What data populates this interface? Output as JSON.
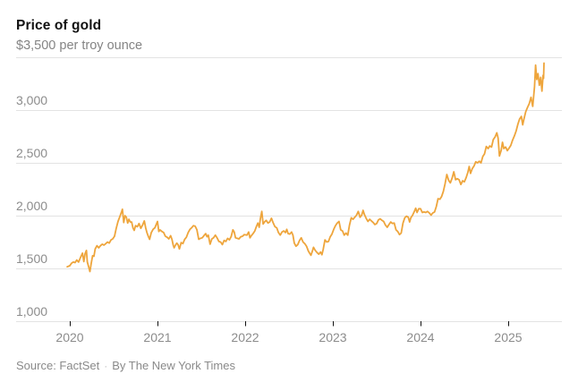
{
  "header": {
    "title": "Price of gold",
    "subtitle": "$3,500 per troy ounce"
  },
  "footer": {
    "source": "Source: FactSet",
    "separator": "·",
    "byline": "By The New York Times"
  },
  "colors": {
    "line": "#eea53c",
    "grid": "#e3e3e3",
    "axis_text": "#8c8c8c",
    "tick": "#121212",
    "title_text": "#121212"
  },
  "chart_data": {
    "type": "line",
    "title": "Price of gold",
    "subtitle_unit_label": "$3,500 per troy ounce",
    "unit": "USD per troy ounce",
    "x_range_years": [
      2019.97,
      2025.41
    ],
    "ylim": [
      1000,
      3500
    ],
    "grid": "horizontal",
    "y_gridline_values": [
      3500,
      3000,
      2500,
      2000,
      1500,
      1000
    ],
    "y_axis_labels": [
      {
        "value": 3000,
        "label": "3,000"
      },
      {
        "value": 2500,
        "label": "2,500"
      },
      {
        "value": 2000,
        "label": "2,000"
      },
      {
        "value": 1500,
        "label": "1,500"
      },
      {
        "value": 1000,
        "label": "1,000"
      }
    ],
    "x_ticks": [
      {
        "year": 2020,
        "label": "2020"
      },
      {
        "year": 2021,
        "label": "2021"
      },
      {
        "year": 2022,
        "label": "2022"
      },
      {
        "year": 2023,
        "label": "2023"
      },
      {
        "year": 2024,
        "label": "2024"
      },
      {
        "year": 2025,
        "label": "2025"
      }
    ],
    "series": [
      {
        "name": "Gold price, dollars per troy ounce",
        "points_format": "[years_since_2020, price_usd]",
        "points": [
          [
            -0.03,
            1515
          ],
          [
            0.0,
            1525
          ],
          [
            0.02,
            1550
          ],
          [
            0.04,
            1560
          ],
          [
            0.06,
            1555
          ],
          [
            0.08,
            1580
          ],
          [
            0.1,
            1560
          ],
          [
            0.12,
            1600
          ],
          [
            0.145,
            1645
          ],
          [
            0.16,
            1565
          ],
          [
            0.175,
            1640
          ],
          [
            0.19,
            1670
          ],
          [
            0.2,
            1560
          ],
          [
            0.215,
            1515
          ],
          [
            0.23,
            1470
          ],
          [
            0.245,
            1550
          ],
          [
            0.26,
            1620
          ],
          [
            0.275,
            1615
          ],
          [
            0.29,
            1685
          ],
          [
            0.31,
            1715
          ],
          [
            0.33,
            1695
          ],
          [
            0.35,
            1715
          ],
          [
            0.37,
            1730
          ],
          [
            0.39,
            1720
          ],
          [
            0.41,
            1735
          ],
          [
            0.43,
            1750
          ],
          [
            0.45,
            1740
          ],
          [
            0.47,
            1770
          ],
          [
            0.49,
            1780
          ],
          [
            0.51,
            1805
          ],
          [
            0.53,
            1880
          ],
          [
            0.55,
            1945
          ],
          [
            0.57,
            1990
          ],
          [
            0.59,
            2035
          ],
          [
            0.6,
            2060
          ],
          [
            0.615,
            1935
          ],
          [
            0.63,
            2000
          ],
          [
            0.645,
            1985
          ],
          [
            0.66,
            1930
          ],
          [
            0.675,
            1965
          ],
          [
            0.69,
            1940
          ],
          [
            0.705,
            1940
          ],
          [
            0.72,
            1885
          ],
          [
            0.735,
            1860
          ],
          [
            0.75,
            1905
          ],
          [
            0.77,
            1895
          ],
          [
            0.79,
            1925
          ],
          [
            0.81,
            1880
          ],
          [
            0.83,
            1910
          ],
          [
            0.85,
            1950
          ],
          [
            0.865,
            1885
          ],
          [
            0.88,
            1840
          ],
          [
            0.895,
            1805
          ],
          [
            0.91,
            1775
          ],
          [
            0.93,
            1840
          ],
          [
            0.95,
            1870
          ],
          [
            0.97,
            1885
          ],
          [
            1.0,
            1945
          ],
          [
            1.015,
            1850
          ],
          [
            1.03,
            1865
          ],
          [
            1.05,
            1850
          ],
          [
            1.07,
            1840
          ],
          [
            1.09,
            1805
          ],
          [
            1.11,
            1795
          ],
          [
            1.13,
            1780
          ],
          [
            1.15,
            1810
          ],
          [
            1.165,
            1775
          ],
          [
            1.18,
            1720
          ],
          [
            1.19,
            1695
          ],
          [
            1.205,
            1720
          ],
          [
            1.22,
            1740
          ],
          [
            1.235,
            1725
          ],
          [
            1.25,
            1685
          ],
          [
            1.27,
            1745
          ],
          [
            1.29,
            1735
          ],
          [
            1.31,
            1775
          ],
          [
            1.33,
            1795
          ],
          [
            1.35,
            1840
          ],
          [
            1.37,
            1870
          ],
          [
            1.39,
            1885
          ],
          [
            1.41,
            1905
          ],
          [
            1.43,
            1900
          ],
          [
            1.45,
            1865
          ],
          [
            1.47,
            1775
          ],
          [
            1.49,
            1785
          ],
          [
            1.51,
            1790
          ],
          [
            1.53,
            1810
          ],
          [
            1.55,
            1830
          ],
          [
            1.565,
            1800
          ],
          [
            1.58,
            1815
          ],
          [
            1.6,
            1730
          ],
          [
            1.62,
            1780
          ],
          [
            1.64,
            1790
          ],
          [
            1.66,
            1815
          ],
          [
            1.68,
            1790
          ],
          [
            1.7,
            1755
          ],
          [
            1.72,
            1750
          ],
          [
            1.74,
            1725
          ],
          [
            1.76,
            1765
          ],
          [
            1.78,
            1755
          ],
          [
            1.8,
            1785
          ],
          [
            1.82,
            1770
          ],
          [
            1.84,
            1800
          ],
          [
            1.86,
            1865
          ],
          [
            1.875,
            1845
          ],
          [
            1.89,
            1790
          ],
          [
            1.91,
            1785
          ],
          [
            1.93,
            1780
          ],
          [
            1.95,
            1800
          ],
          [
            1.97,
            1805
          ],
          [
            1.99,
            1820
          ],
          [
            2.02,
            1815
          ],
          [
            2.04,
            1845
          ],
          [
            2.055,
            1790
          ],
          [
            2.07,
            1810
          ],
          [
            2.09,
            1830
          ],
          [
            2.11,
            1855
          ],
          [
            2.13,
            1900
          ],
          [
            2.145,
            1930
          ],
          [
            2.16,
            1890
          ],
          [
            2.175,
            1975
          ],
          [
            2.19,
            2040
          ],
          [
            2.205,
            1920
          ],
          [
            2.22,
            1940
          ],
          [
            2.24,
            1955
          ],
          [
            2.26,
            1930
          ],
          [
            2.28,
            1940
          ],
          [
            2.3,
            1975
          ],
          [
            2.32,
            1930
          ],
          [
            2.34,
            1895
          ],
          [
            2.36,
            1885
          ],
          [
            2.38,
            1840
          ],
          [
            2.4,
            1815
          ],
          [
            2.42,
            1845
          ],
          [
            2.44,
            1855
          ],
          [
            2.46,
            1840
          ],
          [
            2.475,
            1870
          ],
          [
            2.49,
            1830
          ],
          [
            2.51,
            1825
          ],
          [
            2.53,
            1845
          ],
          [
            2.545,
            1815
          ],
          [
            2.56,
            1740
          ],
          [
            2.58,
            1710
          ],
          [
            2.6,
            1725
          ],
          [
            2.62,
            1765
          ],
          [
            2.64,
            1790
          ],
          [
            2.66,
            1750
          ],
          [
            2.68,
            1735
          ],
          [
            2.7,
            1710
          ],
          [
            2.72,
            1665
          ],
          [
            2.735,
            1645
          ],
          [
            2.75,
            1625
          ],
          [
            2.765,
            1660
          ],
          [
            2.78,
            1700
          ],
          [
            2.8,
            1670
          ],
          [
            2.82,
            1650
          ],
          [
            2.84,
            1635
          ],
          [
            2.86,
            1655
          ],
          [
            2.875,
            1630
          ],
          [
            2.89,
            1680
          ],
          [
            2.91,
            1770
          ],
          [
            2.93,
            1750
          ],
          [
            2.95,
            1755
          ],
          [
            2.97,
            1800
          ],
          [
            2.99,
            1825
          ],
          [
            3.01,
            1870
          ],
          [
            3.03,
            1905
          ],
          [
            3.05,
            1930
          ],
          [
            3.07,
            1945
          ],
          [
            3.09,
            1865
          ],
          [
            3.11,
            1855
          ],
          [
            3.13,
            1815
          ],
          [
            3.15,
            1835
          ],
          [
            3.17,
            1815
          ],
          [
            3.19,
            1910
          ],
          [
            3.21,
            1980
          ],
          [
            3.23,
            1965
          ],
          [
            3.25,
            1985
          ],
          [
            3.27,
            2005
          ],
          [
            3.29,
            2040
          ],
          [
            3.31,
            1985
          ],
          [
            3.33,
            2005
          ],
          [
            3.345,
            2050
          ],
          [
            3.36,
            2010
          ],
          [
            3.38,
            1975
          ],
          [
            3.4,
            1945
          ],
          [
            3.42,
            1965
          ],
          [
            3.44,
            1950
          ],
          [
            3.46,
            1935
          ],
          [
            3.48,
            1915
          ],
          [
            3.5,
            1925
          ],
          [
            3.52,
            1960
          ],
          [
            3.54,
            1970
          ],
          [
            3.56,
            1955
          ],
          [
            3.58,
            1945
          ],
          [
            3.6,
            1910
          ],
          [
            3.62,
            1890
          ],
          [
            3.64,
            1915
          ],
          [
            3.66,
            1940
          ],
          [
            3.68,
            1925
          ],
          [
            3.7,
            1930
          ],
          [
            3.72,
            1865
          ],
          [
            3.74,
            1850
          ],
          [
            3.76,
            1820
          ],
          [
            3.78,
            1835
          ],
          [
            3.8,
            1930
          ],
          [
            3.82,
            1980
          ],
          [
            3.84,
            1995
          ],
          [
            3.86,
            1985
          ],
          [
            3.875,
            1940
          ],
          [
            3.89,
            1980
          ],
          [
            3.91,
            2005
          ],
          [
            3.93,
            2040
          ],
          [
            3.945,
            2070
          ],
          [
            3.96,
            2030
          ],
          [
            3.98,
            2065
          ],
          [
            4.0,
            2065
          ],
          [
            4.02,
            2030
          ],
          [
            4.04,
            2035
          ],
          [
            4.06,
            2030
          ],
          [
            4.08,
            2040
          ],
          [
            4.1,
            2025
          ],
          [
            4.12,
            2005
          ],
          [
            4.14,
            2025
          ],
          [
            4.16,
            2035
          ],
          [
            4.18,
            2085
          ],
          [
            4.2,
            2160
          ],
          [
            4.22,
            2155
          ],
          [
            4.24,
            2180
          ],
          [
            4.26,
            2230
          ],
          [
            4.28,
            2300
          ],
          [
            4.3,
            2390
          ],
          [
            4.32,
            2335
          ],
          [
            4.34,
            2310
          ],
          [
            4.36,
            2355
          ],
          [
            4.38,
            2415
          ],
          [
            4.4,
            2340
          ],
          [
            4.42,
            2350
          ],
          [
            4.44,
            2340
          ],
          [
            4.46,
            2295
          ],
          [
            4.48,
            2330
          ],
          [
            4.5,
            2320
          ],
          [
            4.52,
            2360
          ],
          [
            4.54,
            2410
          ],
          [
            4.555,
            2465
          ],
          [
            4.57,
            2400
          ],
          [
            4.59,
            2445
          ],
          [
            4.61,
            2470
          ],
          [
            4.63,
            2510
          ],
          [
            4.65,
            2500
          ],
          [
            4.67,
            2515
          ],
          [
            4.69,
            2500
          ],
          [
            4.71,
            2560
          ],
          [
            4.73,
            2585
          ],
          [
            4.75,
            2655
          ],
          [
            4.77,
            2635
          ],
          [
            4.79,
            2660
          ],
          [
            4.81,
            2650
          ],
          [
            4.83,
            2720
          ],
          [
            4.85,
            2745
          ],
          [
            4.87,
            2785
          ],
          [
            4.885,
            2735
          ],
          [
            4.9,
            2565
          ],
          [
            4.92,
            2620
          ],
          [
            4.935,
            2695
          ],
          [
            4.95,
            2635
          ],
          [
            4.97,
            2650
          ],
          [
            4.99,
            2615
          ],
          [
            5.01,
            2640
          ],
          [
            5.03,
            2665
          ],
          [
            5.05,
            2715
          ],
          [
            5.07,
            2755
          ],
          [
            5.09,
            2800
          ],
          [
            5.11,
            2865
          ],
          [
            5.13,
            2915
          ],
          [
            5.15,
            2940
          ],
          [
            5.165,
            2860
          ],
          [
            5.18,
            2915
          ],
          [
            5.2,
            2985
          ],
          [
            5.22,
            3025
          ],
          [
            5.24,
            3060
          ],
          [
            5.26,
            3120
          ],
          [
            5.28,
            3035
          ],
          [
            5.3,
            3220
          ],
          [
            5.312,
            3425
          ],
          [
            5.325,
            3290
          ],
          [
            5.34,
            3345
          ],
          [
            5.355,
            3235
          ],
          [
            5.37,
            3310
          ],
          [
            5.385,
            3180
          ],
          [
            5.398,
            3330
          ],
          [
            5.403,
            3300
          ],
          [
            5.408,
            3445
          ]
        ]
      }
    ],
    "legend": "none"
  }
}
